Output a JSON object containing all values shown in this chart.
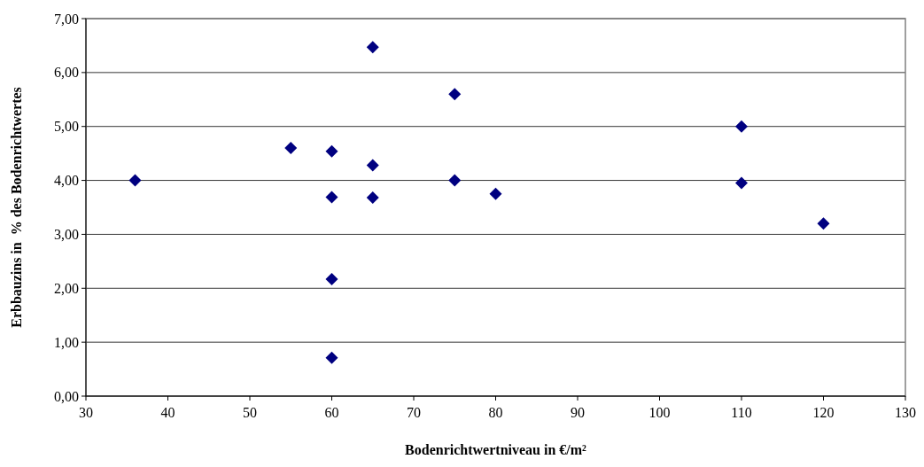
{
  "chart_data": {
    "type": "scatter",
    "xlabel": "Bodenrichtwertniveau in €/m²",
    "ylabel": "Erbbauzins in  % des Bodenrichtwertes",
    "x": [
      36,
      55,
      60,
      60,
      60,
      60,
      65,
      65,
      65,
      75,
      75,
      80,
      110,
      110,
      120
    ],
    "series": [
      {
        "color": "#000080",
        "values": [
          4.0,
          4.6,
          4.54,
          3.69,
          2.17,
          0.71,
          6.47,
          4.28,
          3.68,
          5.6,
          4.0,
          3.75,
          5.0,
          3.95,
          3.2
        ]
      }
    ],
    "marker": "diamond",
    "grid": "y",
    "xlim": [
      30,
      130
    ],
    "xticks": [
      30,
      40,
      50,
      60,
      70,
      80,
      90,
      100,
      110,
      120,
      130
    ],
    "ylim": [
      0,
      7
    ],
    "yticks": [
      {
        "value": 0,
        "label": "0,00"
      },
      {
        "value": 1,
        "label": "1,00"
      },
      {
        "value": 2,
        "label": "2,00"
      },
      {
        "value": 3,
        "label": "3,00"
      },
      {
        "value": 4,
        "label": "4,00"
      },
      {
        "value": 5,
        "label": "5,00"
      },
      {
        "value": 6,
        "label": "6,00"
      },
      {
        "value": 7,
        "label": "7,00"
      }
    ]
  }
}
